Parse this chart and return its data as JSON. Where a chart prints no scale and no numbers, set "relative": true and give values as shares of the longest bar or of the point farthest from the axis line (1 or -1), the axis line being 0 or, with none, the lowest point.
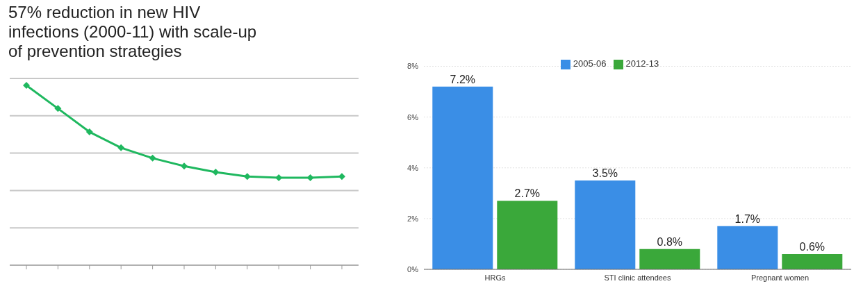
{
  "chart_data": [
    {
      "type": "line",
      "title": "57% reduction in new HIV infections (2000-11) with scale-up of prevention strategies",
      "categories": [
        null,
        null,
        null,
        null,
        null,
        null,
        null,
        null,
        null,
        null,
        null
      ],
      "relative": true,
      "grid": "y",
      "marker": "diamond",
      "line_style": "solid",
      "series": [
        {
          "color": "#1fb85f",
          "values": [
            1,
            0.871,
            0.741,
            0.653,
            0.595,
            0.551,
            0.517,
            0.493,
            0.486,
            0.486,
            0.493
          ]
        }
      ]
    },
    {
      "type": "bar",
      "categories": [
        "HRGs",
        "STI clinic attendees",
        "Pregnant women"
      ],
      "ylim": [
        0,
        8
      ],
      "yticks": [
        {
          "value": 0,
          "label": "0%"
        },
        {
          "value": 2,
          "label": "2%"
        },
        {
          "value": 4,
          "label": "4%"
        },
        {
          "value": 6,
          "label": "6%"
        },
        {
          "value": 8,
          "label": "8%"
        }
      ],
      "grid": "y",
      "legend": "top",
      "series": [
        {
          "name": "2005-06",
          "color": "#3a8ee6",
          "values": [
            7.2,
            3.5,
            1.7
          ],
          "value_labels": [
            "7.2%",
            "3.5%",
            "1.7%"
          ]
        },
        {
          "name": "2012-13",
          "color": "#3aa83a",
          "values": [
            2.7,
            0.8,
            0.6
          ],
          "value_labels": [
            "2.7%",
            "0.8%",
            "0.6%"
          ]
        }
      ]
    }
  ]
}
